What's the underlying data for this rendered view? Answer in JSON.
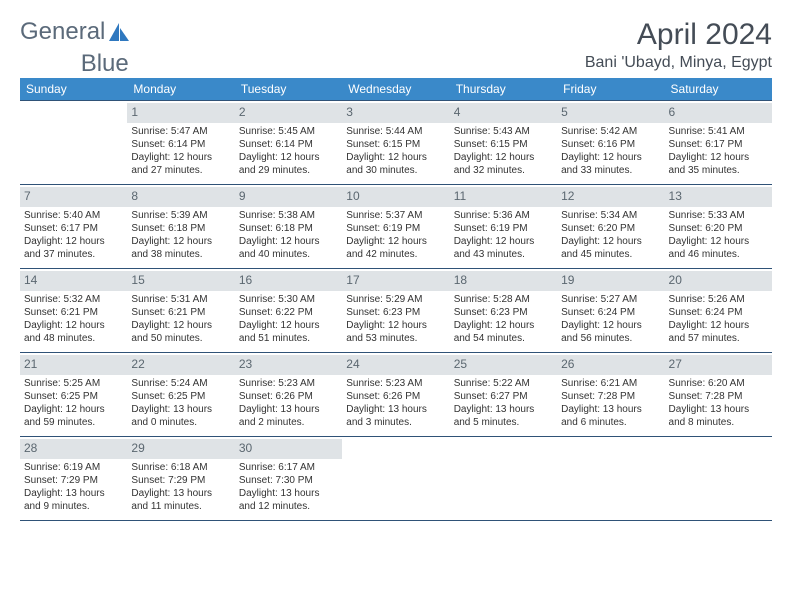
{
  "brand": {
    "part1": "General",
    "part2": "Blue"
  },
  "title": "April 2024",
  "location": "Bani 'Ubayd, Minya, Egypt",
  "colors": {
    "header_bg": "#3a89c9",
    "header_text": "#ffffff",
    "daynum_bg": "#dfe3e6",
    "daynum_text": "#5b6770",
    "border": "#2f5277",
    "title_text": "#444c56",
    "logo_text": "#5b6a7a",
    "logo_accent": "#2f78bf"
  },
  "weekdays": [
    "Sunday",
    "Monday",
    "Tuesday",
    "Wednesday",
    "Thursday",
    "Friday",
    "Saturday"
  ],
  "weeks": [
    [
      {
        "empty": true
      },
      {
        "day": "1",
        "sunrise": "Sunrise: 5:47 AM",
        "sunset": "Sunset: 6:14 PM",
        "daylight1": "Daylight: 12 hours",
        "daylight2": "and 27 minutes."
      },
      {
        "day": "2",
        "sunrise": "Sunrise: 5:45 AM",
        "sunset": "Sunset: 6:14 PM",
        "daylight1": "Daylight: 12 hours",
        "daylight2": "and 29 minutes."
      },
      {
        "day": "3",
        "sunrise": "Sunrise: 5:44 AM",
        "sunset": "Sunset: 6:15 PM",
        "daylight1": "Daylight: 12 hours",
        "daylight2": "and 30 minutes."
      },
      {
        "day": "4",
        "sunrise": "Sunrise: 5:43 AM",
        "sunset": "Sunset: 6:15 PM",
        "daylight1": "Daylight: 12 hours",
        "daylight2": "and 32 minutes."
      },
      {
        "day": "5",
        "sunrise": "Sunrise: 5:42 AM",
        "sunset": "Sunset: 6:16 PM",
        "daylight1": "Daylight: 12 hours",
        "daylight2": "and 33 minutes."
      },
      {
        "day": "6",
        "sunrise": "Sunrise: 5:41 AM",
        "sunset": "Sunset: 6:17 PM",
        "daylight1": "Daylight: 12 hours",
        "daylight2": "and 35 minutes."
      }
    ],
    [
      {
        "day": "7",
        "sunrise": "Sunrise: 5:40 AM",
        "sunset": "Sunset: 6:17 PM",
        "daylight1": "Daylight: 12 hours",
        "daylight2": "and 37 minutes."
      },
      {
        "day": "8",
        "sunrise": "Sunrise: 5:39 AM",
        "sunset": "Sunset: 6:18 PM",
        "daylight1": "Daylight: 12 hours",
        "daylight2": "and 38 minutes."
      },
      {
        "day": "9",
        "sunrise": "Sunrise: 5:38 AM",
        "sunset": "Sunset: 6:18 PM",
        "daylight1": "Daylight: 12 hours",
        "daylight2": "and 40 minutes."
      },
      {
        "day": "10",
        "sunrise": "Sunrise: 5:37 AM",
        "sunset": "Sunset: 6:19 PM",
        "daylight1": "Daylight: 12 hours",
        "daylight2": "and 42 minutes."
      },
      {
        "day": "11",
        "sunrise": "Sunrise: 5:36 AM",
        "sunset": "Sunset: 6:19 PM",
        "daylight1": "Daylight: 12 hours",
        "daylight2": "and 43 minutes."
      },
      {
        "day": "12",
        "sunrise": "Sunrise: 5:34 AM",
        "sunset": "Sunset: 6:20 PM",
        "daylight1": "Daylight: 12 hours",
        "daylight2": "and 45 minutes."
      },
      {
        "day": "13",
        "sunrise": "Sunrise: 5:33 AM",
        "sunset": "Sunset: 6:20 PM",
        "daylight1": "Daylight: 12 hours",
        "daylight2": "and 46 minutes."
      }
    ],
    [
      {
        "day": "14",
        "sunrise": "Sunrise: 5:32 AM",
        "sunset": "Sunset: 6:21 PM",
        "daylight1": "Daylight: 12 hours",
        "daylight2": "and 48 minutes."
      },
      {
        "day": "15",
        "sunrise": "Sunrise: 5:31 AM",
        "sunset": "Sunset: 6:21 PM",
        "daylight1": "Daylight: 12 hours",
        "daylight2": "and 50 minutes."
      },
      {
        "day": "16",
        "sunrise": "Sunrise: 5:30 AM",
        "sunset": "Sunset: 6:22 PM",
        "daylight1": "Daylight: 12 hours",
        "daylight2": "and 51 minutes."
      },
      {
        "day": "17",
        "sunrise": "Sunrise: 5:29 AM",
        "sunset": "Sunset: 6:23 PM",
        "daylight1": "Daylight: 12 hours",
        "daylight2": "and 53 minutes."
      },
      {
        "day": "18",
        "sunrise": "Sunrise: 5:28 AM",
        "sunset": "Sunset: 6:23 PM",
        "daylight1": "Daylight: 12 hours",
        "daylight2": "and 54 minutes."
      },
      {
        "day": "19",
        "sunrise": "Sunrise: 5:27 AM",
        "sunset": "Sunset: 6:24 PM",
        "daylight1": "Daylight: 12 hours",
        "daylight2": "and 56 minutes."
      },
      {
        "day": "20",
        "sunrise": "Sunrise: 5:26 AM",
        "sunset": "Sunset: 6:24 PM",
        "daylight1": "Daylight: 12 hours",
        "daylight2": "and 57 minutes."
      }
    ],
    [
      {
        "day": "21",
        "sunrise": "Sunrise: 5:25 AM",
        "sunset": "Sunset: 6:25 PM",
        "daylight1": "Daylight: 12 hours",
        "daylight2": "and 59 minutes."
      },
      {
        "day": "22",
        "sunrise": "Sunrise: 5:24 AM",
        "sunset": "Sunset: 6:25 PM",
        "daylight1": "Daylight: 13 hours",
        "daylight2": "and 0 minutes."
      },
      {
        "day": "23",
        "sunrise": "Sunrise: 5:23 AM",
        "sunset": "Sunset: 6:26 PM",
        "daylight1": "Daylight: 13 hours",
        "daylight2": "and 2 minutes."
      },
      {
        "day": "24",
        "sunrise": "Sunrise: 5:23 AM",
        "sunset": "Sunset: 6:26 PM",
        "daylight1": "Daylight: 13 hours",
        "daylight2": "and 3 minutes."
      },
      {
        "day": "25",
        "sunrise": "Sunrise: 5:22 AM",
        "sunset": "Sunset: 6:27 PM",
        "daylight1": "Daylight: 13 hours",
        "daylight2": "and 5 minutes."
      },
      {
        "day": "26",
        "sunrise": "Sunrise: 6:21 AM",
        "sunset": "Sunset: 7:28 PM",
        "daylight1": "Daylight: 13 hours",
        "daylight2": "and 6 minutes."
      },
      {
        "day": "27",
        "sunrise": "Sunrise: 6:20 AM",
        "sunset": "Sunset: 7:28 PM",
        "daylight1": "Daylight: 13 hours",
        "daylight2": "and 8 minutes."
      }
    ],
    [
      {
        "day": "28",
        "sunrise": "Sunrise: 6:19 AM",
        "sunset": "Sunset: 7:29 PM",
        "daylight1": "Daylight: 13 hours",
        "daylight2": "and 9 minutes."
      },
      {
        "day": "29",
        "sunrise": "Sunrise: 6:18 AM",
        "sunset": "Sunset: 7:29 PM",
        "daylight1": "Daylight: 13 hours",
        "daylight2": "and 11 minutes."
      },
      {
        "day": "30",
        "sunrise": "Sunrise: 6:17 AM",
        "sunset": "Sunset: 7:30 PM",
        "daylight1": "Daylight: 13 hours",
        "daylight2": "and 12 minutes."
      },
      {
        "empty": true
      },
      {
        "empty": true
      },
      {
        "empty": true
      },
      {
        "empty": true
      }
    ]
  ]
}
